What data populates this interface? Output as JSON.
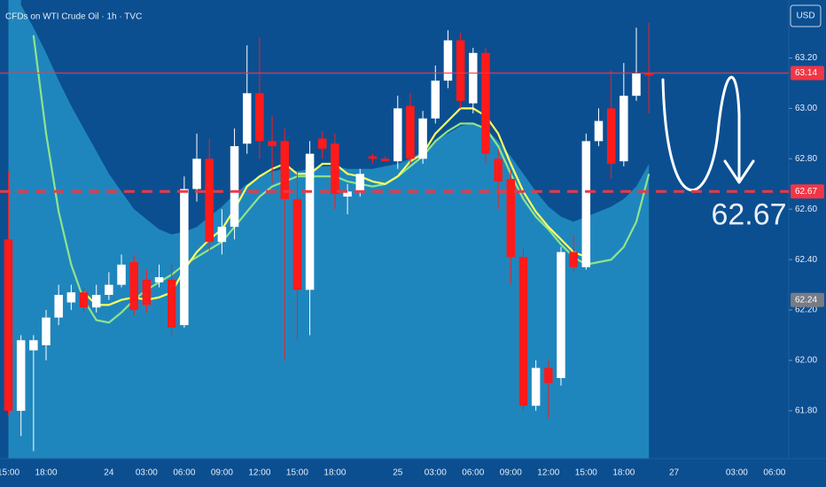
{
  "chart_data": {
    "type": "candlestick",
    "title": "CFDs on WTI Crude Oil · 1h · TVC",
    "currency": "USD",
    "categories": [
      "15:00",
      null,
      null,
      "18:00",
      null,
      null,
      null,
      null,
      "24",
      null,
      null,
      "03:00",
      null,
      null,
      "06:00",
      null,
      null,
      "09:00",
      null,
      null,
      "12:00",
      null,
      null,
      "15:00",
      null,
      null,
      "18:00",
      null,
      null,
      null,
      null,
      "25",
      null,
      null,
      "03:00",
      null,
      null,
      "06:00",
      null,
      null,
      "09:00",
      null,
      null,
      "12:00",
      null,
      null,
      "15:00",
      null,
      null,
      "18:00",
      null,
      null,
      null,
      "27",
      null,
      null,
      null,
      null,
      "03:00",
      null,
      null,
      "06:00"
    ],
    "open": [
      62.48,
      61.8,
      62.04,
      62.06,
      62.17,
      62.23,
      62.27,
      62.21,
      62.26,
      62.3,
      62.39,
      62.32,
      62.31,
      62.32,
      62.14,
      62.68,
      62.8,
      62.47,
      62.53,
      62.86,
      63.06,
      62.87,
      62.87,
      62.64,
      62.28,
      62.88,
      62.86,
      62.65,
      62.67,
      62.81,
      62.8,
      62.79,
      63.01,
      62.8,
      62.96,
      63.11,
      63.27,
      63.02,
      63.22,
      62.8,
      62.72,
      62.41,
      61.82,
      61.97,
      61.93,
      62.43,
      62.37,
      62.87,
      63.0,
      62.79,
      63.05,
      63.14,
      null,
      null,
      null,
      null,
      null,
      null,
      null,
      null,
      null,
      null
    ],
    "high": [
      62.75,
      62.1,
      62.1,
      62.2,
      62.3,
      62.3,
      62.29,
      62.3,
      62.35,
      62.42,
      62.42,
      62.36,
      62.38,
      62.38,
      62.73,
      62.9,
      62.88,
      62.6,
      62.92,
      63.25,
      63.28,
      62.97,
      62.92,
      62.75,
      62.87,
      62.91,
      62.9,
      62.7,
      62.76,
      62.82,
      62.81,
      63.05,
      63.06,
      62.99,
      63.17,
      63.31,
      63.3,
      63.24,
      63.24,
      62.84,
      62.76,
      62.45,
      62.0,
      62.0,
      62.45,
      62.5,
      62.9,
      63.0,
      63.15,
      63.18,
      63.32,
      63.34,
      null,
      null,
      null,
      null,
      null,
      null,
      null,
      null,
      null,
      null
    ],
    "low": [
      61.78,
      61.7,
      61.64,
      62.0,
      62.14,
      62.2,
      62.19,
      62.19,
      62.24,
      62.29,
      62.18,
      62.19,
      62.29,
      62.1,
      62.13,
      62.63,
      62.43,
      62.42,
      62.48,
      62.82,
      62.8,
      62.7,
      62.0,
      62.08,
      62.1,
      62.8,
      62.6,
      62.58,
      62.65,
      62.78,
      62.79,
      62.76,
      62.78,
      62.78,
      62.94,
      63.08,
      63.0,
      62.98,
      62.78,
      62.6,
      62.3,
      61.8,
      61.8,
      61.77,
      61.9,
      62.35,
      62.36,
      62.85,
      62.72,
      62.77,
      63.03,
      62.98,
      null,
      null,
      null,
      null,
      null,
      null,
      null,
      null,
      null,
      null
    ],
    "close": [
      61.8,
      62.08,
      62.08,
      62.17,
      62.26,
      62.27,
      62.21,
      62.26,
      62.3,
      62.38,
      62.2,
      62.22,
      62.33,
      62.13,
      62.68,
      62.8,
      62.47,
      62.53,
      62.85,
      63.06,
      62.87,
      62.85,
      62.64,
      62.28,
      62.82,
      62.84,
      62.66,
      62.67,
      62.74,
      62.8,
      62.79,
      63.0,
      62.8,
      62.96,
      63.11,
      63.27,
      63.03,
      63.22,
      62.82,
      62.71,
      62.41,
      61.82,
      61.97,
      61.91,
      62.43,
      62.37,
      62.87,
      62.95,
      62.78,
      63.05,
      63.14,
      63.13,
      null,
      null,
      null,
      null,
      null,
      null,
      null,
      null,
      null,
      null
    ],
    "up_color": "#ffffff",
    "down_color": "#ff1a1a",
    "series": [
      {
        "type": "area",
        "color": "#1f86bd",
        "values": [
          null,
          63.41,
          63.32,
          63.22,
          63.11,
          63.01,
          62.92,
          62.83,
          62.74,
          62.67,
          62.6,
          62.56,
          62.52,
          62.5,
          62.51,
          62.53,
          62.57,
          62.61,
          62.66,
          62.7,
          62.73,
          62.75,
          62.76,
          62.75,
          62.76,
          62.77,
          62.77,
          62.76,
          62.76,
          62.76,
          62.77,
          62.78,
          62.8,
          62.83,
          62.87,
          62.9,
          62.93,
          62.94,
          62.92,
          62.87,
          62.81,
          62.74,
          62.67,
          62.61,
          62.57,
          62.55,
          62.57,
          62.59,
          62.61,
          62.64,
          62.69,
          62.78,
          null,
          null,
          null,
          null,
          null,
          null,
          null,
          null,
          null,
          null
        ]
      },
      {
        "type": "line",
        "color": "#8fe38a",
        "values": [
          null,
          null,
          63.29,
          62.9,
          62.59,
          62.38,
          62.24,
          62.16,
          62.15,
          62.19,
          62.24,
          62.28,
          62.31,
          62.34,
          62.38,
          62.41,
          62.44,
          62.47,
          62.53,
          62.59,
          62.65,
          62.69,
          62.71,
          62.73,
          62.73,
          62.73,
          62.73,
          62.71,
          62.7,
          62.69,
          62.7,
          62.73,
          62.77,
          62.81,
          62.87,
          62.91,
          62.94,
          62.94,
          62.92,
          62.85,
          62.74,
          62.64,
          62.57,
          62.52,
          62.46,
          62.41,
          62.38,
          62.39,
          62.4,
          62.45,
          62.55,
          62.74,
          null,
          null,
          null,
          null,
          null,
          null,
          null,
          null,
          null,
          null
        ]
      },
      {
        "type": "line",
        "color": "#ffff5c",
        "values": [
          null,
          null,
          null,
          null,
          null,
          null,
          62.27,
          62.22,
          62.22,
          62.24,
          62.25,
          62.24,
          62.25,
          62.27,
          62.36,
          62.43,
          62.48,
          62.52,
          62.6,
          62.69,
          62.73,
          62.76,
          62.78,
          62.74,
          62.74,
          62.78,
          62.78,
          62.74,
          62.73,
          62.71,
          62.7,
          62.73,
          62.79,
          62.82,
          62.9,
          62.95,
          63.0,
          63.0,
          62.97,
          62.9,
          62.78,
          62.67,
          62.59,
          62.53,
          62.48,
          62.43,
          62.41,
          null,
          null,
          null,
          null,
          null,
          null,
          null,
          null,
          null,
          null,
          null,
          null,
          null,
          null,
          null
        ]
      }
    ],
    "ylim": [
      61.61,
      63.43
    ],
    "yticks": [
      {
        "value": 63.2,
        "label": "63.20"
      },
      {
        "value": 63.0,
        "label": "63.00"
      },
      {
        "value": 62.8,
        "label": "62.80"
      },
      {
        "value": 62.6,
        "label": "62.60"
      },
      {
        "value": 62.4,
        "label": "62.40"
      },
      {
        "value": 62.2,
        "label": "62.20"
      },
      {
        "value": 62.0,
        "label": "62.00"
      },
      {
        "value": 61.8,
        "label": "61.80"
      }
    ],
    "price_lines": [
      {
        "value": 62.67,
        "label": "62.67",
        "color": "#f23645",
        "style": "dashed"
      },
      {
        "value": 63.14,
        "label": "63.14",
        "color": "#f23645",
        "style": "solid"
      },
      {
        "value": 62.24,
        "label": "62.24",
        "color": "#787b86",
        "style": "none"
      }
    ],
    "target": {
      "value": 62.67,
      "label": "62.67"
    }
  }
}
